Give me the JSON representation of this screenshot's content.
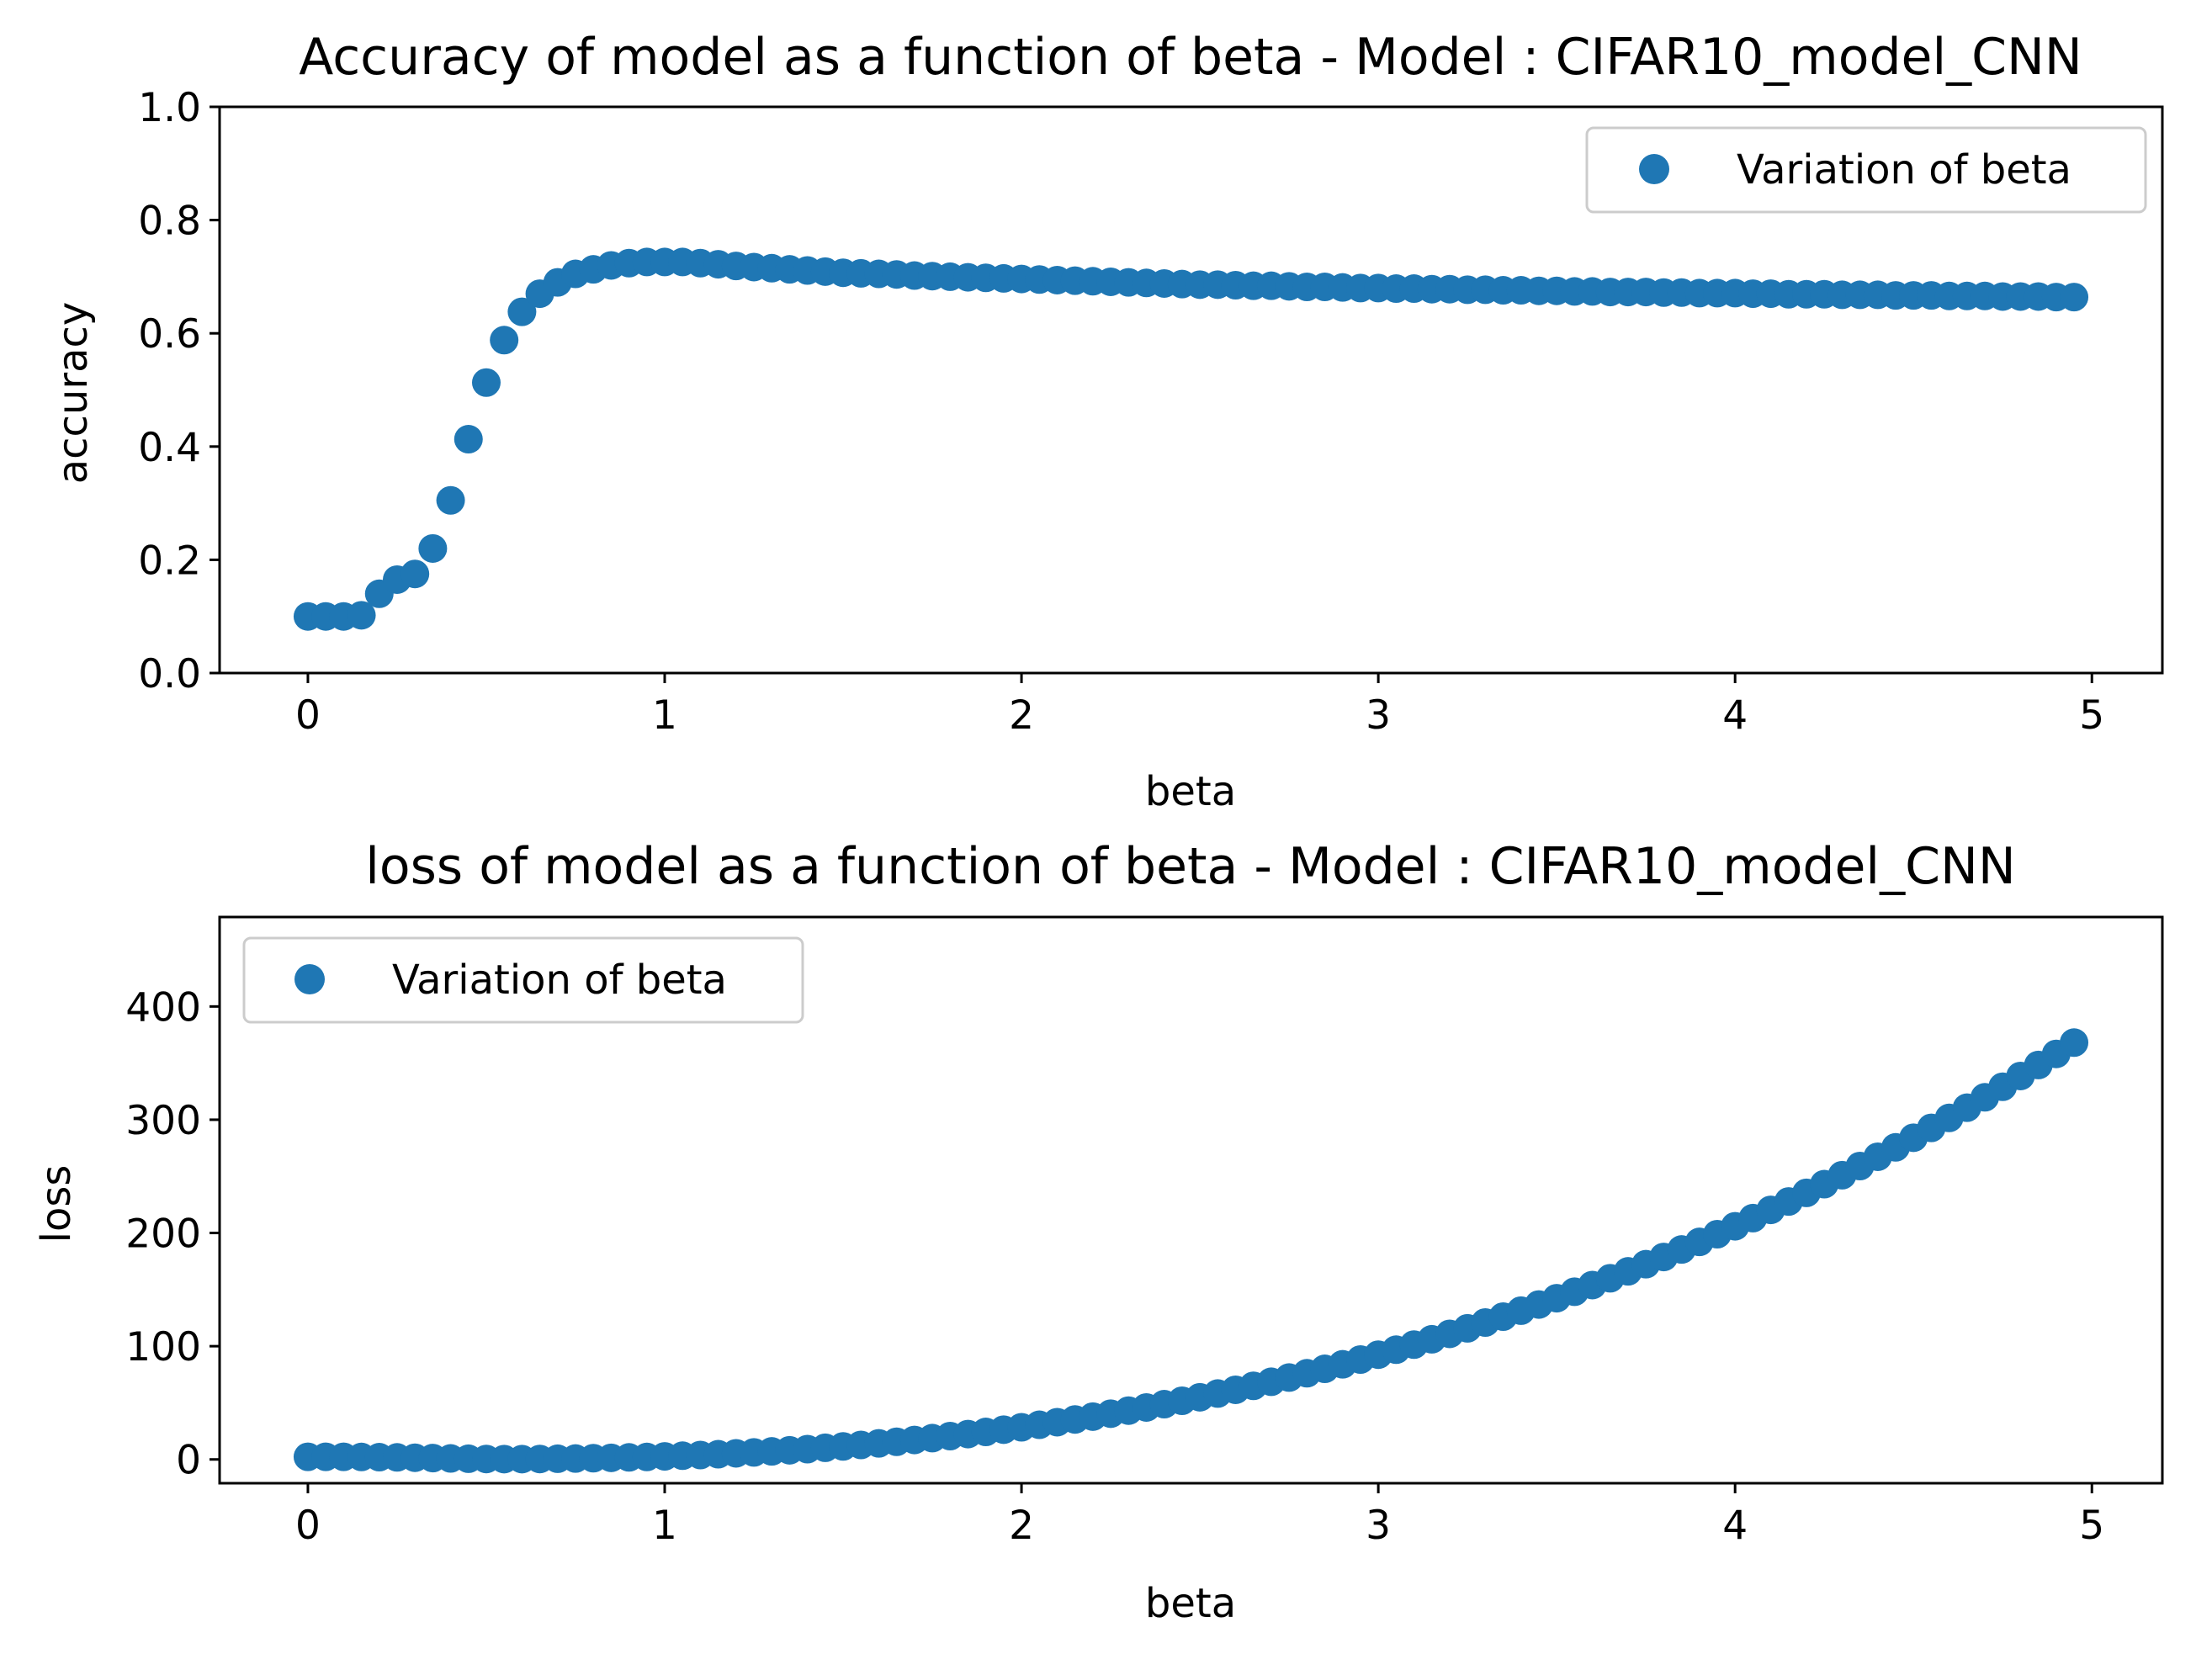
{
  "chart_data": [
    {
      "type": "scatter",
      "title": "Accuracy of model as a function of beta - Model : CIFAR10_model_CNN",
      "xlabel": "beta",
      "ylabel": "accuracy",
      "xlim": [
        -0.2475,
        5.1975
      ],
      "ylim": [
        0,
        1.0
      ],
      "xticks": [
        0,
        1,
        2,
        3,
        4,
        5
      ],
      "yticks": [
        0.0,
        0.2,
        0.4,
        0.6,
        0.8,
        1.0
      ],
      "xtick_labels": [
        "0",
        "1",
        "2",
        "3",
        "4",
        "5"
      ],
      "ytick_labels": [
        "0.0",
        "0.2",
        "0.4",
        "0.6",
        "0.8",
        "1.0"
      ],
      "grid": false,
      "legend": {
        "position": "upper right",
        "entries": [
          "Variation of beta"
        ]
      },
      "marker_color": "#1f77b4",
      "series": [
        {
          "name": "Variation of beta",
          "x": [
            0,
            0.05,
            0.1,
            0.15,
            0.2,
            0.25,
            0.3,
            0.35,
            0.4,
            0.45,
            0.5,
            0.55,
            0.6,
            0.65,
            0.7,
            0.75,
            0.8,
            0.85,
            0.9,
            0.95,
            1.0,
            1.05,
            1.1,
            1.15,
            1.2,
            1.25,
            1.3,
            1.35,
            1.4,
            1.45,
            1.5,
            1.55,
            1.6,
            1.65,
            1.7,
            1.75,
            1.8,
            1.85,
            1.9,
            1.95,
            2.0,
            2.05,
            2.1,
            2.15,
            2.2,
            2.25,
            2.3,
            2.35,
            2.4,
            2.45,
            2.5,
            2.55,
            2.6,
            2.65,
            2.7,
            2.75,
            2.8,
            2.85,
            2.9,
            2.95,
            3.0,
            3.05,
            3.1,
            3.15,
            3.2,
            3.25,
            3.3,
            3.35,
            3.4,
            3.45,
            3.5,
            3.55,
            3.6,
            3.65,
            3.7,
            3.75,
            3.8,
            3.85,
            3.9,
            3.95,
            4.0,
            4.05,
            4.1,
            4.15,
            4.2,
            4.25,
            4.3,
            4.35,
            4.4,
            4.45,
            4.5,
            4.55,
            4.6,
            4.65,
            4.7,
            4.75,
            4.8,
            4.85,
            4.9,
            4.95
          ],
          "y": [
            0.1,
            0.1,
            0.1,
            0.102,
            0.14,
            0.165,
            0.175,
            0.22,
            0.305,
            0.413,
            0.513,
            0.588,
            0.638,
            0.67,
            0.69,
            0.705,
            0.713,
            0.72,
            0.724,
            0.726,
            0.726,
            0.726,
            0.724,
            0.722,
            0.719,
            0.717,
            0.715,
            0.713,
            0.711,
            0.709,
            0.707,
            0.706,
            0.705,
            0.704,
            0.702,
            0.701,
            0.7,
            0.699,
            0.698,
            0.697,
            0.696,
            0.695,
            0.694,
            0.693,
            0.692,
            0.691,
            0.69,
            0.689,
            0.688,
            0.687,
            0.686,
            0.686,
            0.685,
            0.684,
            0.684,
            0.683,
            0.682,
            0.682,
            0.681,
            0.68,
            0.68,
            0.679,
            0.679,
            0.678,
            0.678,
            0.677,
            0.677,
            0.676,
            0.676,
            0.675,
            0.675,
            0.674,
            0.674,
            0.673,
            0.673,
            0.673,
            0.672,
            0.672,
            0.671,
            0.671,
            0.671,
            0.67,
            0.67,
            0.669,
            0.669,
            0.669,
            0.668,
            0.668,
            0.668,
            0.667,
            0.667,
            0.667,
            0.666,
            0.666,
            0.666,
            0.665,
            0.665,
            0.665,
            0.664,
            0.664
          ]
        }
      ]
    },
    {
      "type": "scatter",
      "title": "loss of model as a function of beta - Model : CIFAR10_model_CNN",
      "xlabel": "beta",
      "ylabel": "loss",
      "xlim": [
        -0.2475,
        5.1975
      ],
      "ylim": [
        -21,
        479
      ],
      "xticks": [
        0,
        1,
        2,
        3,
        4,
        5
      ],
      "yticks": [
        0,
        100,
        200,
        300,
        400
      ],
      "xtick_labels": [
        "0",
        "1",
        "2",
        "3",
        "4",
        "5"
      ],
      "ytick_labels": [
        "0",
        "100",
        "200",
        "300",
        "400"
      ],
      "grid": false,
      "legend": {
        "position": "upper left",
        "entries": [
          "Variation of beta"
        ]
      },
      "marker_color": "#1f77b4",
      "series": [
        {
          "name": "Variation of beta",
          "x": [
            0,
            0.05,
            0.1,
            0.15,
            0.2,
            0.25,
            0.3,
            0.35,
            0.4,
            0.45,
            0.5,
            0.55,
            0.6,
            0.65,
            0.7,
            0.75,
            0.8,
            0.85,
            0.9,
            0.95,
            1.0,
            1.05,
            1.1,
            1.15,
            1.2,
            1.25,
            1.3,
            1.35,
            1.4,
            1.45,
            1.5,
            1.55,
            1.6,
            1.65,
            1.7,
            1.75,
            1.8,
            1.85,
            1.9,
            1.95,
            2.0,
            2.05,
            2.1,
            2.15,
            2.2,
            2.25,
            2.3,
            2.35,
            2.4,
            2.45,
            2.5,
            2.55,
            2.6,
            2.65,
            2.7,
            2.75,
            2.8,
            2.85,
            2.9,
            2.95,
            3.0,
            3.05,
            3.1,
            3.15,
            3.2,
            3.25,
            3.3,
            3.35,
            3.4,
            3.45,
            3.5,
            3.55,
            3.6,
            3.65,
            3.7,
            3.75,
            3.8,
            3.85,
            3.9,
            3.95,
            4.0,
            4.05,
            4.1,
            4.15,
            4.2,
            4.25,
            4.3,
            4.35,
            4.4,
            4.45,
            4.5,
            4.55,
            4.6,
            4.65,
            4.7,
            4.75,
            4.8,
            4.85,
            4.9,
            4.95
          ],
          "y": [
            2.3,
            2.3,
            2.3,
            2.2,
            2.0,
            1.8,
            1.5,
            1.2,
            0.9,
            0.6,
            0.4,
            0.3,
            0.3,
            0.4,
            0.6,
            0.8,
            1.1,
            1.4,
            1.8,
            2.2,
            2.7,
            3.3,
            3.9,
            4.6,
            5.4,
            6.2,
            7.1,
            8.1,
            9.1,
            10.3,
            11.5,
            12.8,
            14.2,
            15.6,
            17.2,
            18.8,
            20.6,
            22.4,
            24.3,
            26.3,
            28.4,
            30.6,
            32.9,
            35.3,
            37.8,
            40.4,
            43.1,
            45.9,
            48.8,
            51.8,
            54.9,
            58.2,
            61.5,
            65.0,
            68.6,
            72.3,
            76.1,
            80.0,
            84.0,
            88.2,
            92.5,
            96.9,
            101.4,
            106.1,
            110.9,
            115.8,
            120.9,
            126.1,
            131.4,
            136.8,
            142.4,
            148.1,
            154.0,
            160.0,
            166.1,
            172.4,
            178.8,
            185.4,
            192.1,
            198.9,
            205.9,
            213.1,
            220.4,
            227.8,
            235.4,
            243.1,
            251.0,
            259.1,
            267.3,
            275.6,
            284.1,
            292.8,
            301.6,
            310.6,
            319.8,
            329.1,
            338.6,
            348.3,
            358.1,
            368.1
          ]
        }
      ]
    }
  ]
}
